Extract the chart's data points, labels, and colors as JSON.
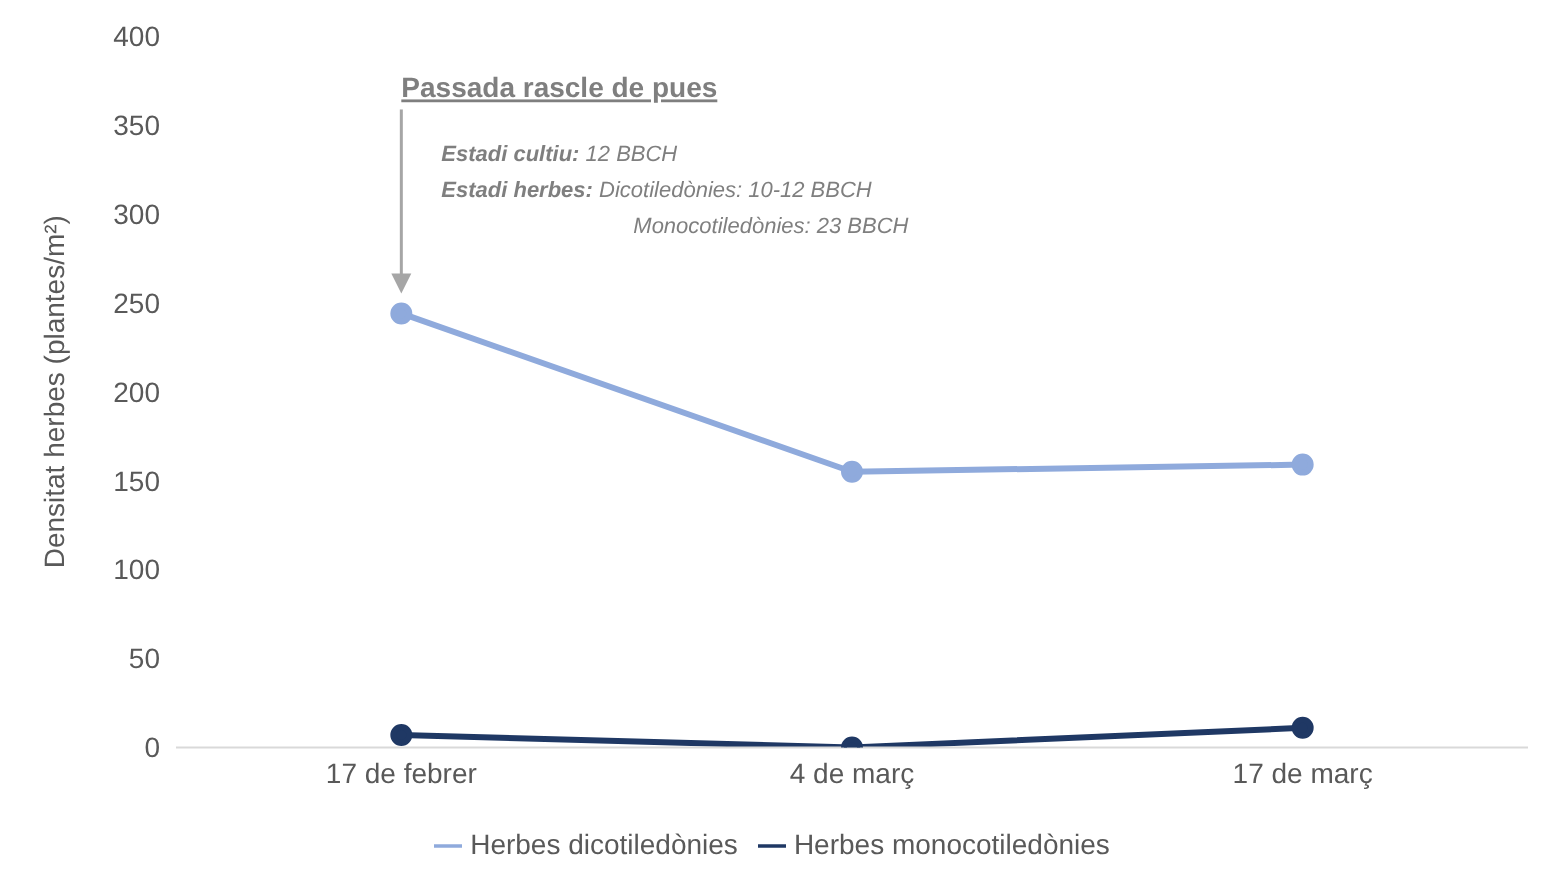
{
  "chart_data": {
    "type": "line",
    "ylabel": "Densitat herbes (plantes/m²)",
    "categories": [
      "17 de febrer",
      "4 de març",
      "17 de març"
    ],
    "series": [
      {
        "name": "Herbes dicotiledònies",
        "color": "#8faadc",
        "values": [
          244,
          155,
          159
        ]
      },
      {
        "name": "Herbes monocotiledònies",
        "color": "#1f3864",
        "values": [
          7,
          0,
          11
        ]
      }
    ],
    "ylim": [
      0,
      400
    ],
    "yticks": [
      0,
      50,
      100,
      150,
      200,
      250,
      300,
      350,
      400
    ],
    "grid": false,
    "legend": "bottom",
    "marker": "circle",
    "line_style": "solid",
    "annotations": [
      "Passada rascle de pues",
      "Estadi cultiu: 12 BBCH",
      "Estadi herbes: Dicotiledònies: 10-12 BBCH",
      "Monocotiledònies: 23 BBCH"
    ]
  }
}
